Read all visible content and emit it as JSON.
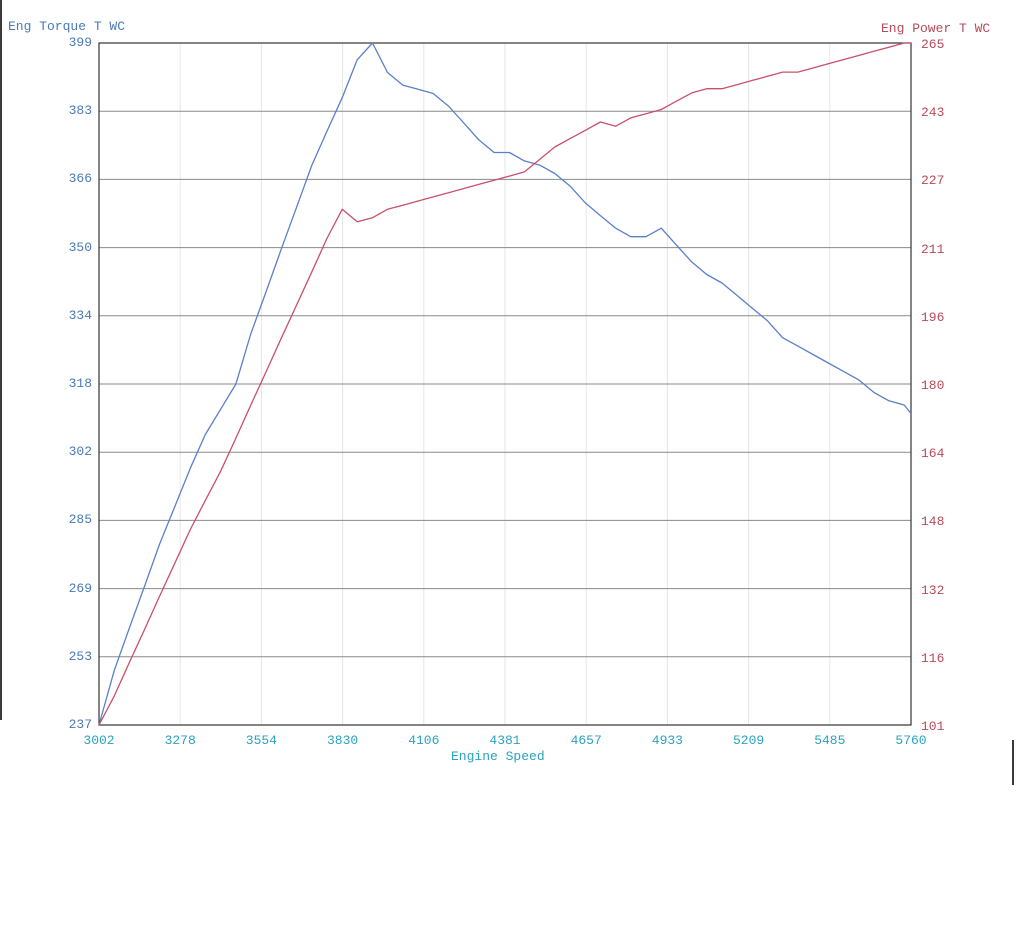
{
  "chart_data": {
    "type": "line",
    "left_axis_title": "Eng Torque T WC",
    "right_axis_title": "Eng Power T WC",
    "xlabel": "Engine Speed",
    "x_ticks": [
      "3002",
      "3278",
      "3554",
      "3830",
      "4106",
      "4381",
      "4657",
      "4933",
      "5209",
      "5485",
      "5760"
    ],
    "y_left_ticks": [
      "399",
      "383",
      "366",
      "350",
      "334",
      "318",
      "302",
      "285",
      "269",
      "253",
      "237"
    ],
    "y_right_ticks": [
      "265",
      "243",
      "227",
      "211",
      "196",
      "180",
      "164",
      "148",
      "132",
      "116",
      "101"
    ],
    "xlim": [
      3002,
      5760
    ],
    "ylim_left": [
      237,
      399
    ],
    "ylim_right": [
      101,
      265
    ],
    "grid": true,
    "colors": {
      "torque": "#5b7fc8",
      "power": "#c8506a",
      "grid": "#8a8a8a",
      "vgrid": "#e6e6e6"
    },
    "series": [
      {
        "axis": "left",
        "x": [
          3002,
          3054,
          3105,
          3157,
          3208,
          3260,
          3312,
          3363,
          3415,
          3467,
          3518,
          3570,
          3621,
          3673,
          3725,
          3776,
          3828,
          3879,
          3931,
          3982,
          4034,
          4086,
          4137,
          4189,
          4241,
          4292,
          4344,
          4396,
          4447,
          4499,
          4550,
          4602,
          4654,
          4705,
          4757,
          4808,
          4860,
          4912,
          4963,
          5015,
          5066,
          5118,
          5170,
          5221,
          5273,
          5324,
          5376,
          5427,
          5479,
          5531,
          5582,
          5634,
          5685,
          5737,
          5760
        ],
        "y": [
          237,
          250,
          260,
          270,
          280,
          289,
          298,
          306,
          312,
          318,
          330,
          340,
          350,
          360,
          370,
          378,
          386,
          395,
          399,
          392,
          389,
          388,
          387,
          384,
          380,
          376,
          373,
          373,
          371,
          370,
          368,
          365,
          361,
          358,
          355,
          353,
          353,
          355,
          351,
          347,
          344,
          342,
          339,
          336,
          333,
          329,
          327,
          325,
          323,
          321,
          319,
          316,
          314,
          313,
          311
        ]
      },
      {
        "axis": "right",
        "x": [
          3002,
          3054,
          3105,
          3157,
          3208,
          3260,
          3312,
          3363,
          3415,
          3467,
          3518,
          3570,
          3621,
          3673,
          3725,
          3776,
          3828,
          3879,
          3931,
          3982,
          4034,
          4086,
          4137,
          4189,
          4241,
          4292,
          4344,
          4396,
          4447,
          4499,
          4550,
          4602,
          4654,
          4705,
          4757,
          4808,
          4860,
          4912,
          4963,
          5015,
          5066,
          5118,
          5170,
          5221,
          5273,
          5324,
          5376,
          5427,
          5479,
          5531,
          5582,
          5634,
          5685,
          5737,
          5760
        ],
        "y": [
          101,
          108,
          116,
          124,
          132,
          140,
          148,
          155,
          162,
          170,
          178,
          186,
          194,
          202,
          210,
          218,
          225,
          222,
          223,
          225,
          226,
          227,
          228,
          229,
          230,
          231,
          232,
          233,
          234,
          237,
          240,
          242,
          244,
          246,
          245,
          247,
          248,
          249,
          251,
          253,
          254,
          254,
          255,
          256,
          257,
          258,
          258,
          259,
          260,
          261,
          262,
          263,
          264,
          265,
          265
        ]
      }
    ]
  }
}
